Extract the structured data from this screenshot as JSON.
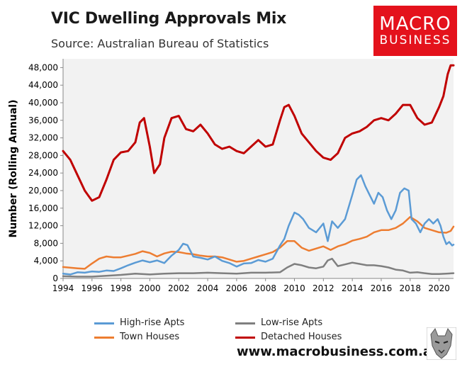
{
  "header": {
    "title": "VIC Dwelling Approvals Mix",
    "subtitle": "Source: Australian Bureau of Statistics"
  },
  "logo": {
    "line1": "MACRO",
    "line2": "BUSINESS",
    "color": "#e4121c"
  },
  "footer": {
    "url": "www.macrobusiness.com.au"
  },
  "chart_data": {
    "type": "line",
    "title": "VIC Dwelling Approvals Mix",
    "subtitle": "Source: Australian Bureau of Statistics",
    "xlabel": "",
    "ylabel": "Number (Rolling Annual)",
    "xlim": [
      1994,
      2021
    ],
    "ylim": [
      0,
      50000
    ],
    "xticks": [
      1994,
      1996,
      1998,
      2000,
      2002,
      2004,
      2006,
      2008,
      2010,
      2012,
      2014,
      2016,
      2018,
      2020
    ],
    "xtick_labels": [
      "1994",
      "1996",
      "1998",
      "2000",
      "2002",
      "2004",
      "2006",
      "2008",
      "2010",
      "2012",
      "2014",
      "2016",
      "2018",
      "2020"
    ],
    "yticks": [
      0,
      4000,
      8000,
      12000,
      16000,
      20000,
      24000,
      28000,
      32000,
      36000,
      40000,
      44000,
      48000
    ],
    "ytick_labels": [
      "0",
      "4,000",
      "8,000",
      "12,000",
      "16,000",
      "20,000",
      "24,000",
      "28,000",
      "32,000",
      "36,000",
      "40,000",
      "44,000",
      "48,000"
    ],
    "grid": false,
    "legend_position": "bottom",
    "series": [
      {
        "name": "High-rise Apts",
        "color": "#5b9bd5",
        "x": [
          1994.0,
          1994.5,
          1995.0,
          1995.5,
          1996.0,
          1996.5,
          1997.0,
          1997.5,
          1998.0,
          1998.5,
          1999.0,
          1999.5,
          2000.0,
          2000.5,
          2001.0,
          2001.5,
          2002.0,
          2002.3,
          2002.6,
          2003.0,
          2003.5,
          2004.0,
          2004.5,
          2005.0,
          2005.5,
          2006.0,
          2006.5,
          2007.0,
          2007.5,
          2008.0,
          2008.5,
          2009.0,
          2009.3,
          2009.6,
          2010.0,
          2010.3,
          2010.6,
          2011.0,
          2011.5,
          2012.0,
          2012.3,
          2012.6,
          2013.0,
          2013.5,
          2014.0,
          2014.3,
          2014.6,
          2014.9,
          2015.2,
          2015.5,
          2015.8,
          2016.1,
          2016.4,
          2016.7,
          2017.0,
          2017.3,
          2017.6,
          2017.9,
          2018.1,
          2018.4,
          2018.7,
          2019.0,
          2019.3,
          2019.6,
          2019.9,
          2020.1,
          2020.3,
          2020.5,
          2020.7,
          2020.9,
          2021.0
        ],
        "values": [
          1100,
          900,
          1400,
          1300,
          1600,
          1500,
          1800,
          1700,
          2300,
          3000,
          3600,
          4100,
          3700,
          4100,
          3500,
          5200,
          6500,
          7900,
          7600,
          5000,
          4700,
          4300,
          5000,
          4000,
          3500,
          2700,
          3400,
          3500,
          4200,
          3800,
          4500,
          7500,
          9000,
          12000,
          15000,
          14500,
          13500,
          11500,
          10500,
          12500,
          8500,
          13000,
          11500,
          13500,
          19000,
          22500,
          23500,
          21000,
          19000,
          17000,
          19500,
          18500,
          15500,
          13500,
          15500,
          19500,
          20500,
          20000,
          13500,
          12500,
          10500,
          12500,
          13500,
          12500,
          13500,
          12000,
          9500,
          7800,
          8300,
          7500,
          7700
        ]
      },
      {
        "name": "Low-rise Apts",
        "color": "#7f7f7f",
        "x": [
          1994.0,
          1995.0,
          1996.0,
          1997.0,
          1998.0,
          1999.0,
          2000.0,
          2001.0,
          2002.0,
          2003.0,
          2004.0,
          2005.0,
          2006.0,
          2007.0,
          2008.0,
          2009.0,
          2009.5,
          2010.0,
          2010.5,
          2011.0,
          2011.5,
          2012.0,
          2012.3,
          2012.6,
          2013.0,
          2013.5,
          2014.0,
          2014.5,
          2015.0,
          2015.5,
          2016.0,
          2016.5,
          2017.0,
          2017.5,
          2018.0,
          2018.5,
          2019.0,
          2019.5,
          2020.0,
          2020.5,
          2021.0
        ],
        "values": [
          500,
          400,
          400,
          600,
          800,
          1100,
          900,
          1100,
          1200,
          1200,
          1300,
          1200,
          1100,
          1300,
          1300,
          1400,
          2500,
          3300,
          3000,
          2500,
          2300,
          2700,
          4100,
          4500,
          2800,
          3200,
          3600,
          3300,
          3000,
          3000,
          2800,
          2500,
          2000,
          1800,
          1300,
          1400,
          1200,
          1000,
          1000,
          1100,
          1200
        ]
      },
      {
        "name": "Town Houses",
        "color": "#ed7d31",
        "x": [
          1994.0,
          1995.0,
          1995.5,
          1996.0,
          1996.5,
          1997.0,
          1997.5,
          1998.0,
          1998.5,
          1999.0,
          1999.5,
          2000.0,
          2000.5,
          2001.0,
          2001.5,
          2002.0,
          2002.5,
          2003.0,
          2003.5,
          2004.0,
          2004.5,
          2005.0,
          2005.5,
          2006.0,
          2006.5,
          2007.0,
          2007.5,
          2008.0,
          2008.5,
          2009.0,
          2009.5,
          2010.0,
          2010.5,
          2011.0,
          2011.5,
          2012.0,
          2012.5,
          2013.0,
          2013.5,
          2014.0,
          2014.5,
          2015.0,
          2015.5,
          2016.0,
          2016.5,
          2017.0,
          2017.5,
          2018.0,
          2018.5,
          2019.0,
          2019.5,
          2020.0,
          2020.5,
          2020.8,
          2021.0
        ],
        "values": [
          2600,
          2300,
          2200,
          3400,
          4500,
          5000,
          4800,
          4800,
          5200,
          5600,
          6200,
          5800,
          5000,
          5700,
          6100,
          6000,
          5700,
          5500,
          5200,
          5000,
          5000,
          4800,
          4300,
          3800,
          4000,
          4500,
          5000,
          5500,
          6000,
          7000,
          8500,
          8500,
          7000,
          6300,
          6800,
          7300,
          6500,
          7300,
          7800,
          8600,
          9000,
          9500,
          10500,
          11000,
          11000,
          11500,
          12500,
          14000,
          13000,
          11500,
          11000,
          10500,
          10400,
          10800,
          11800
        ]
      },
      {
        "name": "Detached Houses",
        "color": "#c00000",
        "x": [
          1994.0,
          1994.5,
          1995.0,
          1995.5,
          1996.0,
          1996.5,
          1997.0,
          1997.5,
          1998.0,
          1998.5,
          1999.0,
          1999.3,
          1999.6,
          2000.0,
          2000.3,
          2000.7,
          2001.0,
          2001.5,
          2002.0,
          2002.5,
          2003.0,
          2003.5,
          2004.0,
          2004.5,
          2005.0,
          2005.5,
          2006.0,
          2006.5,
          2007.0,
          2007.5,
          2008.0,
          2008.5,
          2009.0,
          2009.3,
          2009.6,
          2010.0,
          2010.5,
          2011.0,
          2011.5,
          2012.0,
          2012.5,
          2013.0,
          2013.5,
          2014.0,
          2014.5,
          2015.0,
          2015.5,
          2016.0,
          2016.5,
          2017.0,
          2017.5,
          2018.0,
          2018.5,
          2019.0,
          2019.5,
          2020.0,
          2020.3,
          2020.6,
          2020.8,
          2021.0
        ],
        "values": [
          29000,
          27000,
          23500,
          20000,
          17700,
          18500,
          22500,
          27000,
          28700,
          29000,
          31000,
          35500,
          36500,
          30000,
          24000,
          26000,
          32000,
          36500,
          37000,
          34000,
          33500,
          35000,
          33000,
          30500,
          29500,
          30000,
          29000,
          28500,
          30000,
          31500,
          30000,
          30500,
          36000,
          39000,
          39500,
          37000,
          33000,
          31000,
          29000,
          27500,
          27000,
          28500,
          32000,
          33000,
          33500,
          34500,
          36000,
          36500,
          36000,
          37500,
          39500,
          39500,
          36500,
          35000,
          35500,
          39000,
          41500,
          46500,
          48500,
          48500
        ]
      }
    ]
  }
}
